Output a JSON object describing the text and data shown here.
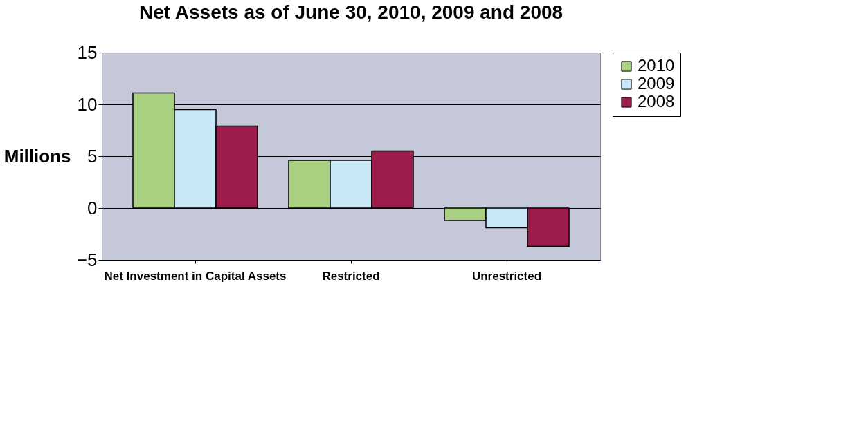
{
  "chart_data": {
    "type": "bar",
    "title": "Net Assets as of June 30, 2010, 2009 and 2008",
    "ylabel": "Millions",
    "categories": [
      "Net Investment in Capital Assets",
      "Restricted",
      "Unrestricted"
    ],
    "series": [
      {
        "name": "2010",
        "color": "#a8d080",
        "values": [
          11.1,
          4.6,
          -1.2
        ]
      },
      {
        "name": "2009",
        "color": "#c8e8f8",
        "values": [
          9.5,
          4.6,
          -1.9
        ]
      },
      {
        "name": "2008",
        "color": "#9c1c4c",
        "values": [
          7.9,
          5.5,
          -3.7
        ]
      }
    ],
    "ylim": [
      -5,
      15
    ],
    "yticks": [
      -5,
      0,
      5,
      10,
      15
    ],
    "grid": "y",
    "legend": "right"
  }
}
